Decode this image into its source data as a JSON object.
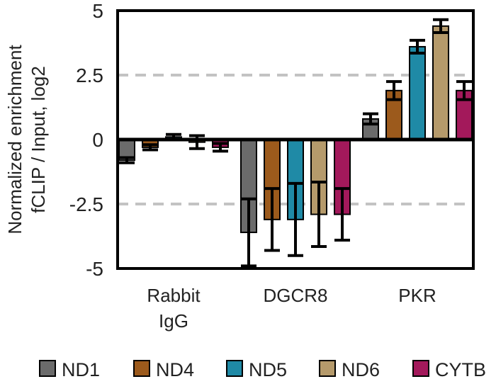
{
  "chart_data": {
    "type": "bar",
    "title": "",
    "xlabel": "",
    "ylabel_lines": [
      "Normalized enrichment",
      "fCLIP / Input, log2"
    ],
    "ylim": [
      -5,
      5
    ],
    "yticks": [
      5,
      2.5,
      0,
      -2.5,
      -5
    ],
    "ytick_labels": [
      "5",
      "2.5",
      "0",
      "-2.5",
      "-5"
    ],
    "dashed_gridlines": [
      2.5,
      -2.5
    ],
    "categories": [
      {
        "label_lines": [
          "Rabbit",
          "IgG"
        ]
      },
      {
        "label_lines": [
          "DGCR8"
        ]
      },
      {
        "label_lines": [
          "PKR"
        ]
      }
    ],
    "series": [
      {
        "name": "ND1",
        "color": "#6b6b6b",
        "values": [
          -0.8,
          -3.6,
          0.8
        ],
        "errors": [
          0.1,
          1.3,
          0.2
        ]
      },
      {
        "name": "ND4",
        "color": "#9c5a1c",
        "values": [
          -0.3,
          -3.1,
          1.9
        ],
        "errors": [
          0.1,
          1.2,
          0.35
        ]
      },
      {
        "name": "ND5",
        "color": "#1f8aa6",
        "values": [
          0.1,
          -3.1,
          3.6
        ],
        "errors": [
          0.1,
          1.4,
          0.25
        ]
      },
      {
        "name": "ND6",
        "color": "#b59a6b",
        "values": [
          -0.1,
          -2.9,
          4.4
        ],
        "errors": [
          0.25,
          1.25,
          0.25
        ]
      },
      {
        "name": "CYTB",
        "color": "#a3195b",
        "values": [
          -0.3,
          -2.9,
          1.9
        ],
        "errors": [
          0.15,
          1.0,
          0.35
        ]
      }
    ],
    "legend_position": "bottom"
  }
}
